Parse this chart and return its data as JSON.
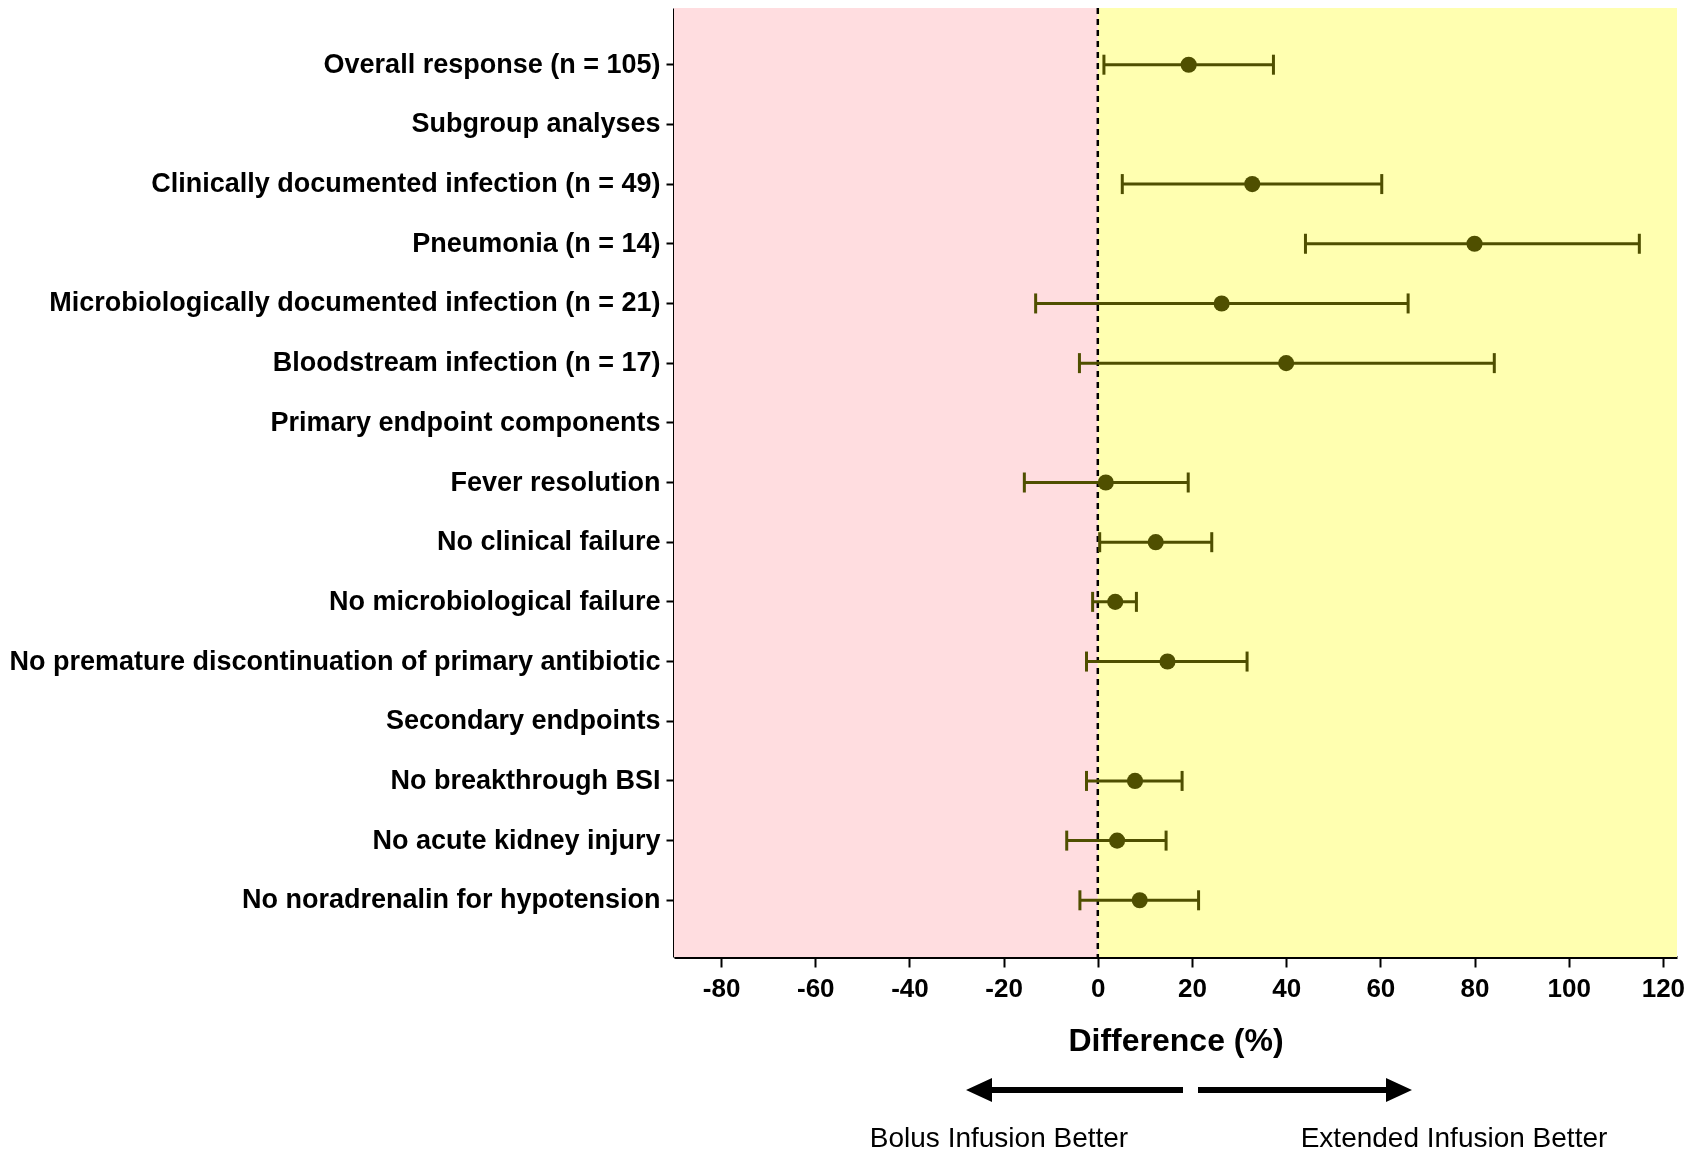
{
  "chart_data": {
    "type": "scatter",
    "orientation": "horizontal",
    "xlabel": "Difference (%)",
    "categories": [
      "Overall response (n = 105)",
      "Subgroup analyses",
      "Clinically  documented infection (n = 49)",
      "Pneumonia (n = 14)",
      "Microbiologically  documented infection (n = 21)",
      "Bloodstream infection (n = 17)",
      "Primary endpoint components",
      "Fever resolution",
      "No clinical failure",
      "No microbiological failure",
      "No premature discontinuation of primary antibiotic",
      "Secondary endpoints",
      "No breakthrough BSI",
      "No acute kidney injury",
      "No noradrenalin for hypotension"
    ],
    "series": [
      {
        "color": "#4f4f00",
        "values": [
          19.3,
          null,
          32.8,
          80,
          26.3,
          40,
          null,
          1.7,
          12.3,
          3.7,
          14.8,
          null,
          7.9,
          4.1,
          8.9
        ],
        "errors": [
          [
            1.3,
            37.3
          ],
          null,
          [
            5.2,
            60.3
          ],
          [
            44.1,
            115
          ],
          [
            -13.2,
            65.9
          ],
          [
            -3.9,
            84.2
          ],
          null,
          [
            -15.6,
            19.2
          ],
          [
            0.4,
            24.2
          ],
          [
            -1.1,
            8.2
          ],
          [
            -2.4,
            31.7
          ],
          null,
          [
            -2.4,
            17.9
          ],
          [
            -6.6,
            14.5
          ],
          [
            -3.8,
            21.4
          ]
        ]
      }
    ],
    "xlim": [
      -90,
      123
    ],
    "xticks": [
      -80,
      -60,
      -40,
      -20,
      0,
      20,
      40,
      60,
      80,
      100,
      120
    ],
    "marker": "circle",
    "ref_lines": [
      {
        "axis": "x",
        "value": 0,
        "line_style": "dashed",
        "color": "#000000"
      }
    ],
    "bands": [
      {
        "axis": "x",
        "from": -90,
        "to": 0,
        "color": "#ffdde0"
      },
      {
        "axis": "x",
        "from": 0,
        "to": 123,
        "color": "#ffffb0"
      }
    ],
    "annotations": [
      "Bolus Infusion Better",
      "Extended Infusion Better"
    ]
  }
}
